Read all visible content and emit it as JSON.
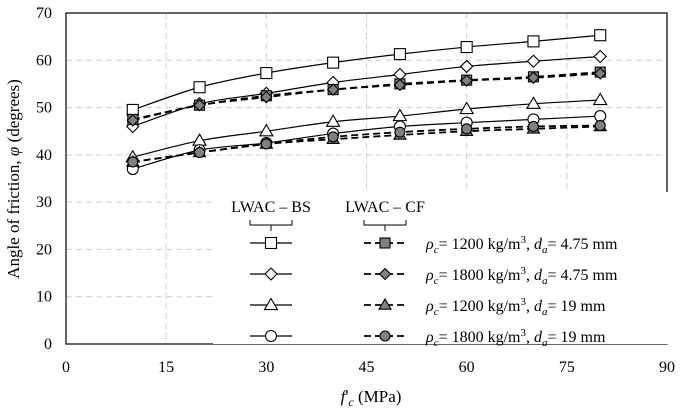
{
  "chart_data": {
    "type": "line",
    "title": "",
    "xlabel": "f'c (MPa)",
    "xlabel_parts": {
      "f": "f",
      "prime": "'",
      "sub": "c",
      "units": " (MPa)"
    },
    "ylabel": "Angle of friction, φ (degrees)",
    "ylabel_parts": {
      "main": "Angle of friction, ",
      "symbol": "φ",
      "units": " (degrees)"
    },
    "xlim": [
      0,
      90
    ],
    "ylim": [
      0,
      70
    ],
    "xticks": [
      "0",
      "15",
      "30",
      "45",
      "60",
      "75",
      "90"
    ],
    "yticks": [
      "0",
      "10",
      "20",
      "30",
      "40",
      "50",
      "60",
      "70"
    ],
    "grid": true,
    "legend_placement": "bottom-right",
    "legend_groups": [
      "LWAC – BS",
      "LWAC – CF"
    ],
    "legend_entries": [
      {
        "rho": "1200",
        "da": "4.75"
      },
      {
        "rho": "1800",
        "da": "4.75"
      },
      {
        "rho": "1200",
        "da": "19"
      },
      {
        "rho": "1800",
        "da": "19"
      }
    ],
    "legend_text": {
      "rho_symbol": "ρ",
      "rho_sub": "c",
      "eq": "= ",
      "unit_kg": " kg/m",
      "unit_sup": "3",
      "sep": ",  ",
      "da_symbol": "d",
      "da_sub": "a",
      "unit_mm": " mm"
    },
    "x": [
      10,
      20,
      30,
      40,
      50,
      60,
      70,
      80
    ],
    "series": [
      {
        "name": "LWAC-BS rho=1200, da=4.75",
        "marker": "square",
        "fill": "open",
        "dash": "solid",
        "values": [
          49.5,
          54.3,
          57.3,
          59.5,
          61.3,
          62.8,
          64.0,
          65.3
        ]
      },
      {
        "name": "LWAC-BS rho=1800, da=4.75",
        "marker": "diamond",
        "fill": "open",
        "dash": "solid",
        "values": [
          46.0,
          50.8,
          53.0,
          55.3,
          57.0,
          58.7,
          59.8,
          60.8
        ]
      },
      {
        "name": "LWAC-BS rho=1200, da=19",
        "marker": "triangle",
        "fill": "open",
        "dash": "solid",
        "values": [
          39.5,
          43.0,
          45.0,
          47.0,
          48.2,
          49.7,
          50.8,
          51.6
        ]
      },
      {
        "name": "LWAC-BS rho=1800, da=19",
        "marker": "circle",
        "fill": "open",
        "dash": "solid",
        "values": [
          37.0,
          41.0,
          42.5,
          44.5,
          46.0,
          46.8,
          47.5,
          48.2
        ]
      },
      {
        "name": "LWAC-CF rho=1200, da=4.75",
        "marker": "square",
        "fill": "grey",
        "dash": "dashed",
        "values": [
          47.5,
          50.5,
          52.5,
          53.8,
          55.0,
          55.8,
          56.5,
          57.5
        ]
      },
      {
        "name": "LWAC-CF rho=1800, da=4.75",
        "marker": "diamond",
        "fill": "grey",
        "dash": "dashed",
        "values": [
          47.3,
          50.5,
          52.2,
          53.8,
          54.8,
          55.7,
          56.3,
          57.2
        ]
      },
      {
        "name": "LWAC-CF rho=1200, da=19",
        "marker": "triangle",
        "fill": "grey",
        "dash": "dashed",
        "values": [
          38.5,
          40.5,
          42.3,
          43.3,
          44.2,
          45.0,
          45.5,
          46.0
        ]
      },
      {
        "name": "LWAC-CF rho=1800, da=19",
        "marker": "circle",
        "fill": "grey",
        "dash": "dashed",
        "values": [
          38.5,
          40.5,
          42.3,
          43.8,
          44.8,
          45.5,
          46.0,
          46.2
        ]
      }
    ],
    "colors": {
      "line": "#000000",
      "fill_grey": "#808080",
      "fill_open": "#ffffff",
      "grid": "#d0d0d0"
    }
  }
}
